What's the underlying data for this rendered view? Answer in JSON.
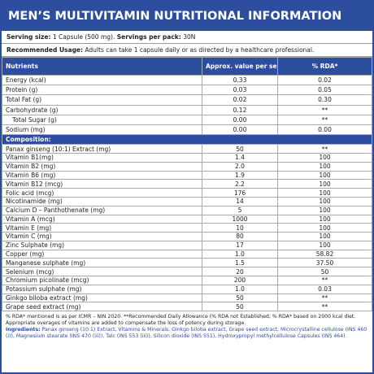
{
  "header": {
    "title": "MEN’S MULTIVITAMIN NUTRITIONAL INFORMATION"
  },
  "serving": [
    {
      "label": "Serving size:",
      "value": "1 Capsule (500 mg)."
    },
    {
      "label": "Servings per pack:",
      "value": "30N"
    }
  ],
  "usage": {
    "label": "Recommended Usage:",
    "value": "Adults can take 1 capsule daily or as directed by a healthcare professional."
  },
  "table": {
    "header": [
      "Nutrients",
      "Approx. value per serving",
      "% RDA*"
    ],
    "rows": [
      [
        "Energy (kcal)",
        "0.33",
        "0.02"
      ],
      [
        "Protein (g)",
        "0.03",
        "0.05"
      ],
      [
        "Total Fat (g)",
        "0.02",
        "0.30"
      ],
      [
        "Carbohydrate (g)",
        "0.12",
        "**"
      ],
      [
        "Total Sugar (g)",
        "0.00",
        "**"
      ],
      [
        "Sodium (mg)",
        "0.00",
        "0.00"
      ]
    ],
    "composition_title": "Composition:",
    "composition": [
      [
        "Panax ginseng (10:1) Extract (mg)",
        "50",
        "**"
      ],
      [
        "Vitamin B1(mg)",
        "1.4",
        "100"
      ],
      [
        "Vitamin B2 (mg)",
        "2.0",
        "100"
      ],
      [
        "Vitamin B6 (mg)",
        "1.9",
        "100"
      ],
      [
        "Vitamin B12 (mcg)",
        "2.2",
        "100"
      ],
      [
        "Folic acid (mcg)",
        "176",
        "100"
      ],
      [
        "Nicotinamide (mg)",
        "14",
        "100"
      ],
      [
        "Calcium D – Panthothenate (mg)",
        "5",
        "100"
      ],
      [
        "Vitamin A (mcg)",
        "1000",
        "100"
      ],
      [
        "Vitamin E (mg)",
        "10",
        "100"
      ],
      [
        "Vitamin C (mg)",
        "80",
        "100"
      ],
      [
        "Zinc Sulphate (mg)",
        "17",
        "100"
      ],
      [
        "Copper (mg)",
        "1.0",
        "58.82"
      ],
      [
        "Manganese sulphate (mg)",
        "1.5",
        "37.50"
      ],
      [
        "Selenium (mcg)",
        "20",
        "50"
      ],
      [
        "Chromium picolinate (mcg)",
        "200",
        "**"
      ],
      [
        "Potassium sulphate (mg)",
        "1.0",
        "0.03"
      ],
      [
        "Ginkgo biloba extract (mg)",
        "50",
        "**"
      ],
      [
        "Grape seed extract (mg)",
        "50",
        "**"
      ]
    ]
  },
  "footnote": "% RDA* mentioned is as per ICMR – NIN 2020. **Recommended Daily Allowance (% RDA not Established; % RDA* based on 2000 kcal diet. Appropriate overages of vitamins are added to compensate the loss of potency during storage.",
  "ingredients": {
    "label": "Ingredients:",
    "value": "Panax ginseng (10:1) Extract, Vitamins & Minerals, Ginkgo biloba extract, Grape seed extract, Microcrystalline cellulose (INS 460 (i)), Magnesium stearate (INS 470 (iii)), Talc (INS 553 (iii)), Silicon dioxide (INS 551), Hydroxypropyl methylcellulose Capsules (INS 464)."
  }
}
